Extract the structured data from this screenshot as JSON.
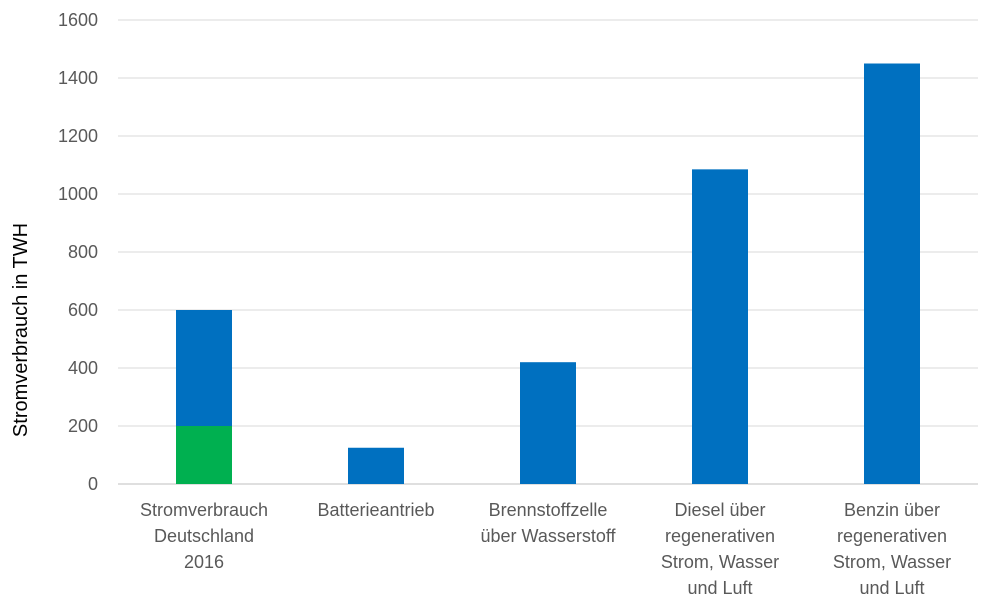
{
  "chart_data": {
    "type": "bar",
    "stacked": true,
    "categories": [
      [
        "Stromverbrauch",
        "Deutschland",
        "2016"
      ],
      [
        "Batterieantrieb"
      ],
      [
        "Brennstoffzelle",
        "über Wasserstoff"
      ],
      [
        "Diesel über",
        "regenerativen",
        "Strom, Wasser",
        "und Luft"
      ],
      [
        "Benzin über",
        "regenerativen",
        "Strom, Wasser",
        "und Luft"
      ]
    ],
    "series": [
      {
        "values": [
          200,
          0,
          0,
          0,
          0
        ],
        "color": "#00b050"
      },
      {
        "values": [
          400,
          125,
          420,
          1085,
          1450
        ],
        "color": "#0070c0"
      }
    ],
    "ylabel": "Stromverbrauch in TWH",
    "xlabel": "",
    "ylim": [
      0,
      1600
    ],
    "yticks": [
      "0",
      "200",
      "400",
      "600",
      "800",
      "1000",
      "1200",
      "1400",
      "1600"
    ],
    "grid": true,
    "legend": "none"
  }
}
